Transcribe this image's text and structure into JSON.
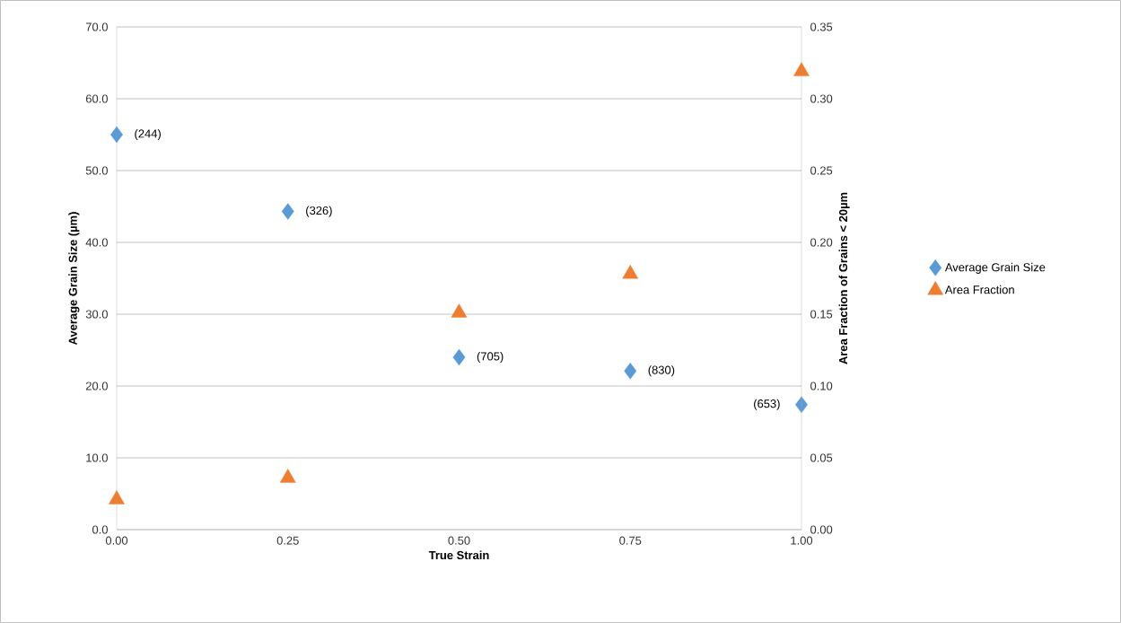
{
  "chart_data": {
    "type": "scatter",
    "xlabel": "True Strain",
    "ylabel": "Average Grain Size (µm)",
    "y2label": "Area Fraction of Grains < 20µm",
    "x": [
      0,
      0.25,
      0.5,
      0.75,
      1.0
    ],
    "series": [
      {
        "name": "Average Grain Size",
        "color": "#5b9bd5",
        "marker": "diamond",
        "values": [
          55.0,
          44.3,
          24.0,
          22.1,
          17.4
        ]
      },
      {
        "name": "Area Fraction",
        "color": "#ed7d31",
        "marker": "triangle",
        "axis": "y2",
        "values": [
          0.021,
          0.036,
          0.151,
          0.178,
          0.319
        ]
      }
    ],
    "xlim": [
      0,
      1.0
    ],
    "xticks": [
      {
        "value": 0,
        "label": "0.00"
      },
      {
        "value": 0.25,
        "label": "0.25"
      },
      {
        "value": 0.5,
        "label": "0.50"
      },
      {
        "value": 0.75,
        "label": "0.75"
      },
      {
        "value": 1.0,
        "label": "1.00"
      }
    ],
    "ylim": [
      0,
      70
    ],
    "yticks": [
      {
        "value": 0,
        "label": "0.0"
      },
      {
        "value": 10,
        "label": "10.0"
      },
      {
        "value": 20,
        "label": "20.0"
      },
      {
        "value": 30,
        "label": "30.0"
      },
      {
        "value": 40,
        "label": "40.0"
      },
      {
        "value": 50,
        "label": "50.0"
      },
      {
        "value": 60,
        "label": "60.0"
      },
      {
        "value": 70,
        "label": "70.0"
      }
    ],
    "y2lim": [
      0,
      0.35
    ],
    "y2ticks": [
      {
        "value": 0,
        "label": "0.00"
      },
      {
        "value": 0.05,
        "label": "0.05"
      },
      {
        "value": 0.1,
        "label": "0.10"
      },
      {
        "value": 0.15,
        "label": "0.15"
      },
      {
        "value": 0.2,
        "label": "0.20"
      },
      {
        "value": 0.25,
        "label": "0.25"
      },
      {
        "value": 0.3,
        "label": "0.30"
      },
      {
        "value": 0.35,
        "label": "0.35"
      }
    ],
    "annotations": [
      {
        "text": "(244)",
        "x": 0,
        "y": 55.0
      },
      {
        "text": "(326)",
        "x": 0.25,
        "y": 44.3
      },
      {
        "text": "(705)",
        "x": 0.5,
        "y": 24.0
      },
      {
        "text": "(830)",
        "x": 0.75,
        "y": 22.1
      },
      {
        "text": "(653)",
        "x": 1.0,
        "y": 17.4
      }
    ],
    "grid": "y",
    "legend": "right"
  }
}
